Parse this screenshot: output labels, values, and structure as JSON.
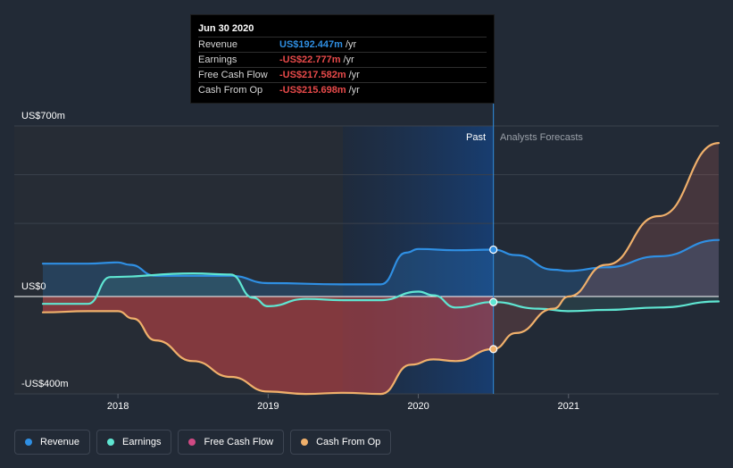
{
  "chart_data": {
    "type": "line",
    "y_axis": {
      "top_label": "US$700m",
      "zero_label": "US$0",
      "bottom_label": "-US$400m",
      "ylim": [
        -400,
        700
      ]
    },
    "x_ticks": [
      "2018",
      "2019",
      "2020",
      "2021"
    ],
    "regions": {
      "past_label": "Past",
      "forecast_label": "Analysts Forecasts"
    },
    "series": [
      {
        "name": "Revenue",
        "color": "#2f8fe3",
        "points": [
          [
            2017.5,
            135
          ],
          [
            2017.8,
            135
          ],
          [
            2018.0,
            140
          ],
          [
            2018.08,
            130
          ],
          [
            2018.25,
            85
          ],
          [
            2018.5,
            85
          ],
          [
            2018.75,
            85
          ],
          [
            2019.0,
            55
          ],
          [
            2019.5,
            50
          ],
          [
            2019.75,
            50
          ],
          [
            2019.92,
            180
          ],
          [
            2020.0,
            195
          ],
          [
            2020.25,
            190
          ],
          [
            2020.5,
            192.447
          ],
          [
            2020.65,
            170
          ],
          [
            2020.9,
            110
          ],
          [
            2021.0,
            105
          ],
          [
            2021.25,
            120
          ],
          [
            2021.6,
            165
          ],
          [
            2022.0,
            232
          ]
        ]
      },
      {
        "name": "Earnings",
        "color": "#5fe6d2",
        "points": [
          [
            2017.5,
            -30
          ],
          [
            2017.8,
            -30
          ],
          [
            2017.95,
            80
          ],
          [
            2018.5,
            95
          ],
          [
            2018.75,
            90
          ],
          [
            2018.9,
            -5
          ],
          [
            2019.0,
            -40
          ],
          [
            2019.25,
            -10
          ],
          [
            2019.5,
            -15
          ],
          [
            2019.75,
            -15
          ],
          [
            2020.0,
            20
          ],
          [
            2020.1,
            5
          ],
          [
            2020.25,
            -45
          ],
          [
            2020.5,
            -22.777
          ],
          [
            2020.8,
            -50
          ],
          [
            2021.0,
            -60
          ],
          [
            2021.25,
            -55
          ],
          [
            2021.6,
            -45
          ],
          [
            2022.0,
            -20
          ]
        ]
      },
      {
        "name": "Free Cash Flow",
        "color": "#d04a84",
        "points": [
          [
            2017.5,
            -65
          ],
          [
            2017.8,
            -60
          ],
          [
            2018.0,
            -60
          ],
          [
            2018.1,
            -90
          ],
          [
            2018.25,
            -180
          ],
          [
            2018.5,
            -265
          ],
          [
            2018.75,
            -330
          ],
          [
            2019.0,
            -390
          ],
          [
            2019.25,
            -400
          ],
          [
            2019.5,
            -395
          ],
          [
            2019.75,
            -400
          ],
          [
            2019.95,
            -280
          ],
          [
            2020.1,
            -258
          ],
          [
            2020.25,
            -265
          ],
          [
            2020.5,
            -217.582
          ]
        ]
      },
      {
        "name": "Cash From Op",
        "color": "#f0b06b",
        "points": [
          [
            2017.5,
            -65
          ],
          [
            2017.8,
            -60
          ],
          [
            2018.0,
            -60
          ],
          [
            2018.1,
            -90
          ],
          [
            2018.25,
            -180
          ],
          [
            2018.5,
            -265
          ],
          [
            2018.75,
            -330
          ],
          [
            2019.0,
            -390
          ],
          [
            2019.25,
            -400
          ],
          [
            2019.5,
            -395
          ],
          [
            2019.75,
            -400
          ],
          [
            2019.95,
            -280
          ],
          [
            2020.1,
            -258
          ],
          [
            2020.25,
            -265
          ],
          [
            2020.5,
            -215.698
          ],
          [
            2020.65,
            -150
          ],
          [
            2020.9,
            -50
          ],
          [
            2021.0,
            0
          ],
          [
            2021.25,
            130
          ],
          [
            2021.6,
            330
          ],
          [
            2022.0,
            630
          ]
        ]
      }
    ],
    "highlight_x": 2020.5,
    "grid": true
  },
  "tooltip": {
    "date": "Jun 30 2020",
    "rows": [
      {
        "label": "Revenue",
        "value": "US$192.447m",
        "unit": "/yr",
        "color": "#2f8fe3"
      },
      {
        "label": "Earnings",
        "value": "-US$22.777m",
        "unit": "/yr",
        "color": "#e84a4a"
      },
      {
        "label": "Free Cash Flow",
        "value": "-US$217.582m",
        "unit": "/yr",
        "color": "#e84a4a"
      },
      {
        "label": "Cash From Op",
        "value": "-US$215.698m",
        "unit": "/yr",
        "color": "#e84a4a"
      }
    ]
  },
  "legend": [
    {
      "label": "Revenue",
      "color": "#2f8fe3"
    },
    {
      "label": "Earnings",
      "color": "#5fe6d2"
    },
    {
      "label": "Free Cash Flow",
      "color": "#d04a84"
    },
    {
      "label": "Cash From Op",
      "color": "#f0b06b"
    }
  ]
}
